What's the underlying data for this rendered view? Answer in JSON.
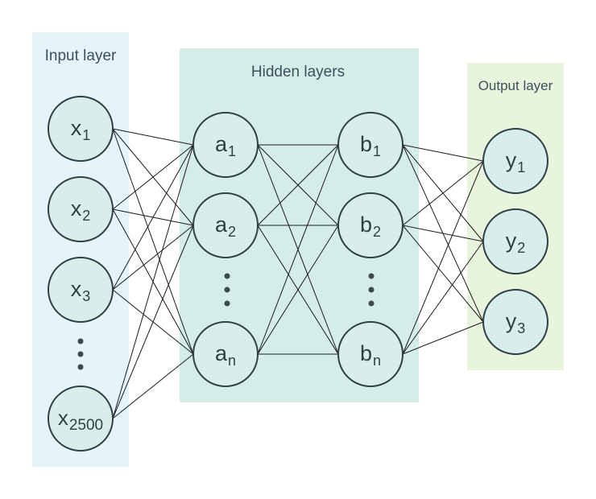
{
  "panels": {
    "input": {
      "title": "Input layer",
      "color": "#e5f4fb"
    },
    "hidden": {
      "title": "Hidden layers",
      "color": "#d4ede8"
    },
    "output": {
      "title": "Output layer",
      "color": "#e8f4dc"
    }
  },
  "nodes": {
    "x1": {
      "base": "x",
      "sub": "1"
    },
    "x2": {
      "base": "x",
      "sub": "2"
    },
    "x3": {
      "base": "x",
      "sub": "3"
    },
    "x2500": {
      "base": "x",
      "sub": "2500"
    },
    "a1": {
      "base": "a",
      "sub": "1"
    },
    "a2": {
      "base": "a",
      "sub": "2"
    },
    "an": {
      "base": "a",
      "sub": "n"
    },
    "b1": {
      "base": "b",
      "sub": "1"
    },
    "b2": {
      "base": "b",
      "sub": "2"
    },
    "bn": {
      "base": "b",
      "sub": "n"
    },
    "y1": {
      "base": "y",
      "sub": "1"
    },
    "y2": {
      "base": "y",
      "sub": "2"
    },
    "y3": {
      "base": "y",
      "sub": "3"
    }
  }
}
